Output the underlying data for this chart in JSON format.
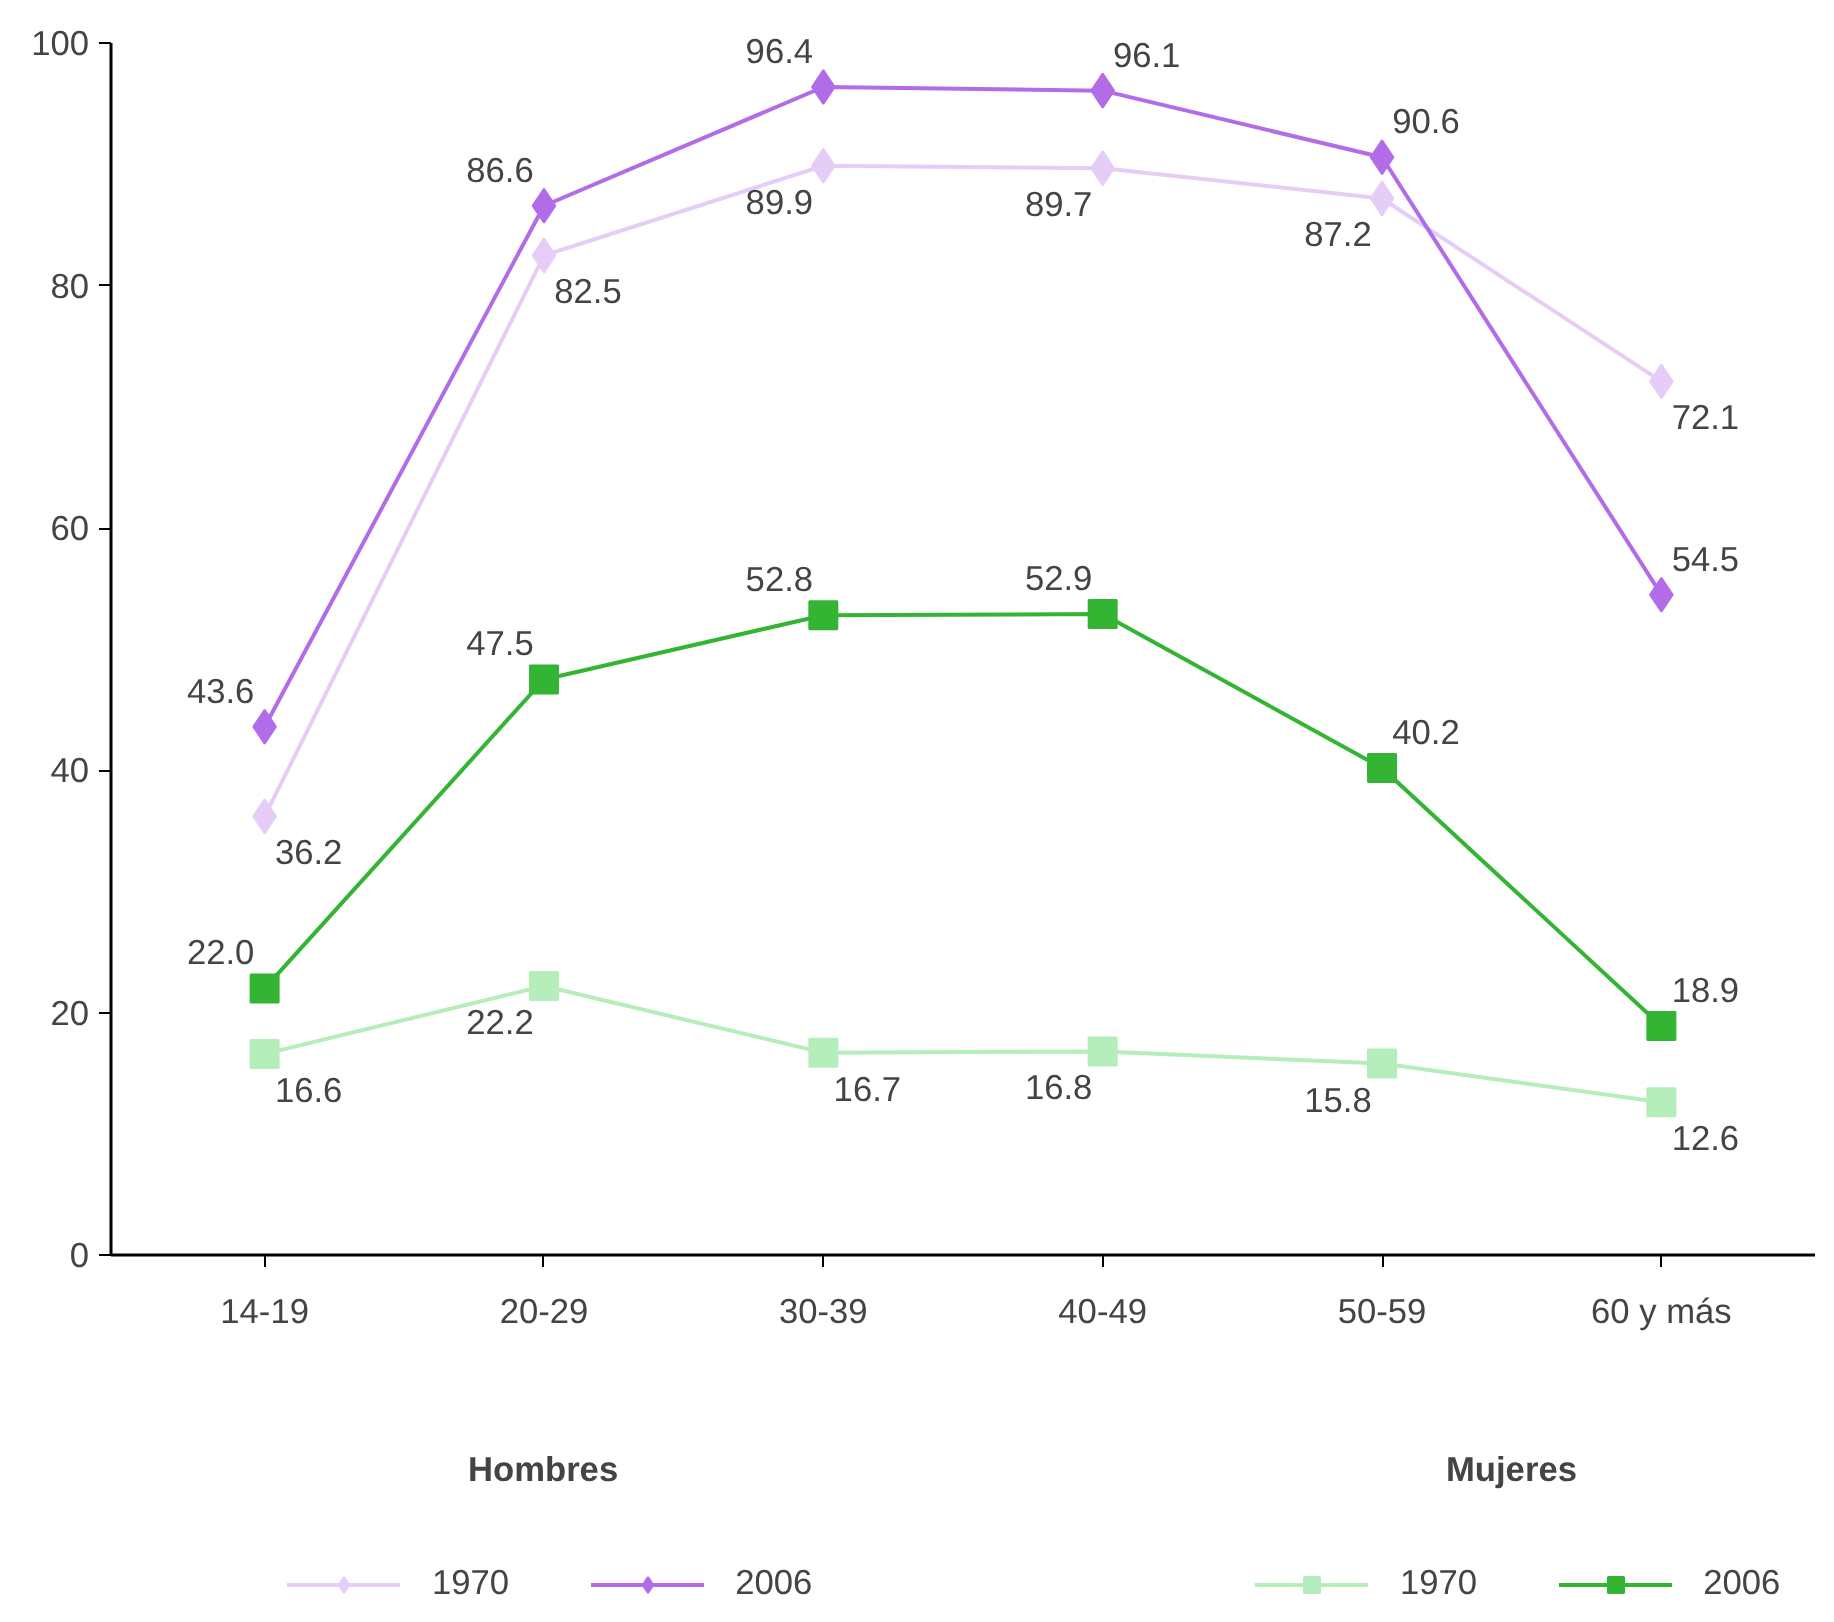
{
  "chart_data": {
    "type": "line",
    "categories": [
      "14-19",
      "20-29",
      "30-39",
      "40-49",
      "50-59",
      "60 y más"
    ],
    "ylim": [
      0,
      100
    ],
    "yticks": [
      0,
      20,
      40,
      60,
      80,
      100
    ],
    "grid": false,
    "legend": "bottom",
    "line_style": "solid",
    "annotations": [
      "Hombres",
      "Mujeres"
    ],
    "series": [
      {
        "name": "1970",
        "color": "#e6cdf7",
        "marker": "diamond",
        "values": [
          36.2,
          82.5,
          89.9,
          89.7,
          87.2,
          72.1
        ],
        "value_labels": [
          "36.2",
          "82.5",
          "89.9",
          "89.7",
          "87.2",
          "72.1"
        ]
      },
      {
        "name": "2006",
        "color": "#b36ce8",
        "marker": "diamond",
        "values": [
          43.6,
          86.6,
          96.4,
          96.1,
          90.6,
          54.5
        ],
        "value_labels": [
          "43.6",
          "86.6",
          "96.4",
          "96.1",
          "90.6",
          "54.5"
        ]
      },
      {
        "name": "1970",
        "color": "#b5edbb",
        "marker": "square",
        "values": [
          16.6,
          22.2,
          16.7,
          16.8,
          15.8,
          12.6
        ],
        "value_labels": [
          "16.6",
          "22.2",
          "16.7",
          "16.8",
          "15.8",
          "12.6"
        ]
      },
      {
        "name": "2006",
        "color": "#33b533",
        "marker": "square",
        "values": [
          22.0,
          47.5,
          52.8,
          52.9,
          40.2,
          18.9
        ],
        "value_labels": [
          "22.0",
          "47.5",
          "52.8",
          "52.9",
          "40.2",
          "18.9"
        ]
      }
    ]
  }
}
